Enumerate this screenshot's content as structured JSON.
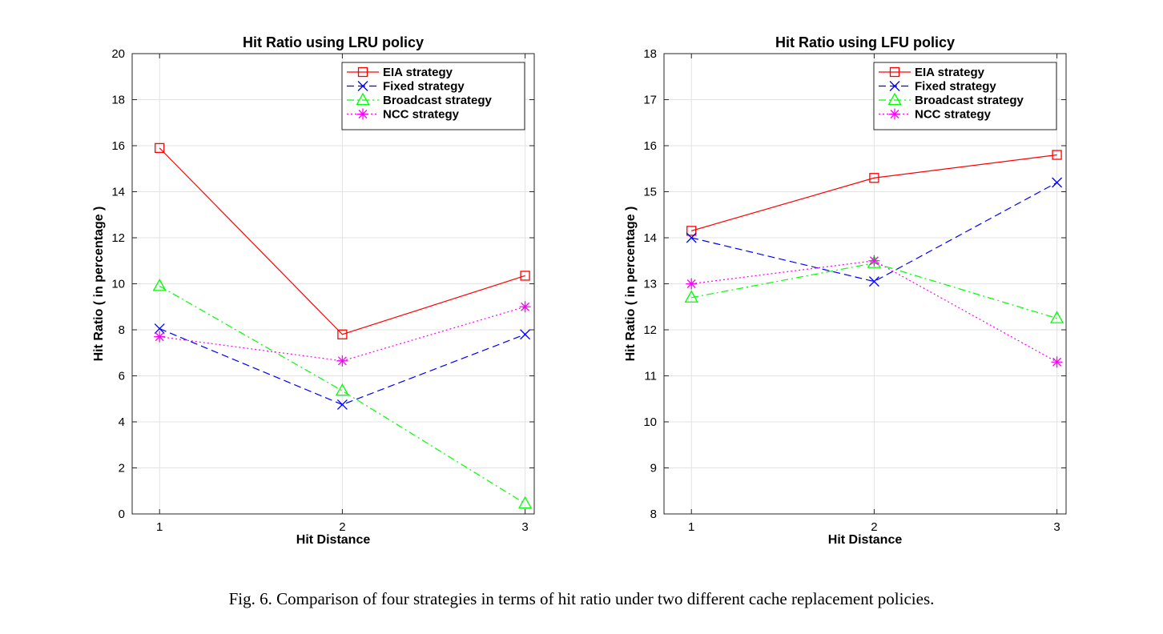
{
  "caption": "Fig. 6.  Comparison of four strategies in terms of hit ratio under two different cache replacement policies.",
  "chart_data": [
    {
      "type": "line",
      "title": "Hit Ratio using LRU policy",
      "xlabel": "Hit Distance",
      "ylabel": "Hit Ratio ( in percentage )",
      "x": [
        1,
        2,
        3
      ],
      "xticks": [
        "1",
        "2",
        "3"
      ],
      "xlim": [
        0.85,
        3.05
      ],
      "ylim": [
        0,
        20
      ],
      "yticks": [
        "0",
        "2",
        "4",
        "6",
        "8",
        "10",
        "12",
        "14",
        "16",
        "18",
        "20"
      ],
      "grid": true,
      "legend_position": "top-right",
      "series": [
        {
          "name": "EIA strategy",
          "values": [
            15.9,
            7.8,
            10.35
          ],
          "color": "#ff0000",
          "dash": "solid",
          "marker": "square"
        },
        {
          "name": "Fixed strategy",
          "values": [
            8.05,
            4.75,
            7.8
          ],
          "color": "#0000ff",
          "dash": "dashed",
          "marker": "x"
        },
        {
          "name": "Broadcast strategy",
          "values": [
            9.9,
            5.35,
            0.45
          ],
          "color": "#00ff00",
          "dash": "dashdot",
          "marker": "triangle"
        },
        {
          "name": "NCC strategy",
          "values": [
            7.7,
            6.65,
            9.0
          ],
          "color": "#ff00ff",
          "dash": "dotted",
          "marker": "star"
        }
      ]
    },
    {
      "type": "line",
      "title": "Hit Ratio using LFU policy",
      "xlabel": "Hit Distance",
      "ylabel": "Hit Ratio ( in percentage )",
      "x": [
        1,
        2,
        3
      ],
      "xticks": [
        "1",
        "2",
        "3"
      ],
      "xlim": [
        0.85,
        3.05
      ],
      "ylim": [
        8,
        18
      ],
      "yticks": [
        "8",
        "9",
        "10",
        "11",
        "12",
        "13",
        "14",
        "15",
        "16",
        "17",
        "18"
      ],
      "grid": true,
      "legend_position": "top-right",
      "series": [
        {
          "name": "EIA strategy",
          "values": [
            14.15,
            15.3,
            15.8
          ],
          "color": "#ff0000",
          "dash": "solid",
          "marker": "square"
        },
        {
          "name": "Fixed strategy",
          "values": [
            14.0,
            13.05,
            15.2
          ],
          "color": "#0000ff",
          "dash": "dashed",
          "marker": "x"
        },
        {
          "name": "Broadcast strategy",
          "values": [
            12.7,
            13.45,
            12.25
          ],
          "color": "#00ff00",
          "dash": "dashdot",
          "marker": "triangle"
        },
        {
          "name": "NCC strategy",
          "values": [
            13.0,
            13.5,
            11.3
          ],
          "color": "#ff00ff",
          "dash": "dotted",
          "marker": "star"
        }
      ]
    }
  ]
}
